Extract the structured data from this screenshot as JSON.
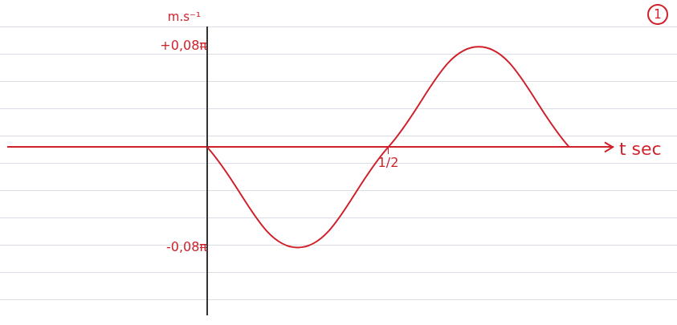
{
  "chart_data": {
    "type": "line",
    "x_label": "t sec",
    "y_label": "m.s⁻¹",
    "x": [
      0,
      0.25,
      0.5,
      0.75,
      1
    ],
    "values": [
      0,
      -0.2513,
      0,
      0.2513,
      0
    ],
    "color": "#d0202a",
    "xlim": [
      -0.55,
      1.12
    ],
    "ylim": [
      -0.42,
      0.3
    ],
    "xticks": [
      {
        "value": 0.5,
        "label": "1/2"
      }
    ],
    "yticks": [
      {
        "value": -0.2513,
        "label": "-0,08π"
      },
      {
        "value": 0.2513,
        "label": "+0,08π"
      }
    ],
    "grid": false,
    "annotations": [
      "1"
    ]
  }
}
